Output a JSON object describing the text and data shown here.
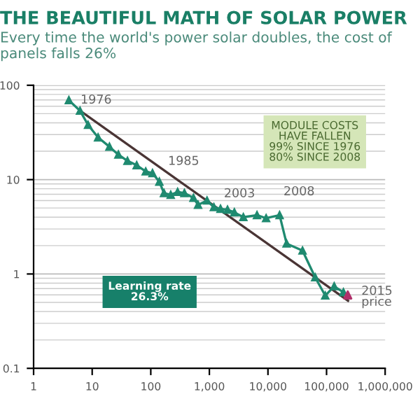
{
  "chart_data": {
    "type": "line",
    "title": "THE BEAUTIFUL MATH OF SOLAR POWER",
    "subtitle": "Every time the world's power solar doubles, the cost of panels falls 26%",
    "log": "xy",
    "grid": "y",
    "marker": "triangle",
    "line_style": "solid",
    "xlim": [
      1,
      1000000
    ],
    "ylim": [
      0.1,
      100
    ],
    "xticks": [
      1,
      10,
      100,
      {
        "value": 1000,
        "label": "1,000"
      },
      {
        "value": 10000,
        "label": "10,000"
      },
      {
        "value": 100000,
        "label": "100,000"
      },
      {
        "value": 1000000,
        "label": "1,000,000"
      }
    ],
    "yticks": [
      0.1,
      1,
      10,
      100
    ],
    "series": [
      {
        "color": "#1f8a70",
        "x": [
          4,
          6.2,
          8.5,
          12.6,
          19.7,
          28,
          40,
          57.5,
          82,
          107,
          140,
          168,
          219,
          287,
          375,
          535,
          641,
          912,
          1194,
          1550,
          2040,
          2670,
          3800,
          6500,
          9300,
          15800,
          20800,
          38900,
          64000,
          95000,
          135000,
          194000
        ],
        "values": [
          69.5,
          53.7,
          38,
          28,
          22.3,
          18.4,
          15.8,
          14.2,
          12.2,
          11.7,
          9.5,
          7.2,
          6.9,
          7.4,
          7.2,
          6.4,
          5.4,
          6.0,
          5.1,
          4.9,
          4.8,
          4.5,
          4.0,
          4.2,
          3.9,
          4.2,
          2.1,
          1.77,
          0.92,
          0.59,
          0.74,
          0.64
        ]
      },
      {
        "type": "line",
        "marker": "none",
        "color": "#4a3535",
        "x": [
          6.2,
          233000
        ],
        "values": [
          53.7,
          0.52
        ]
      },
      {
        "type": "scatter",
        "color": "#b0306a",
        "x": [
          230000
        ],
        "values": [
          0.6
        ]
      }
    ],
    "annotations": [
      {
        "text": "1976",
        "x": 4,
        "y": 69.5
      },
      {
        "text": "1985",
        "x": 107,
        "y": 11.7
      },
      {
        "text": "2003",
        "x": 3800,
        "y": 4.0
      },
      {
        "text": "2008",
        "x": 15800,
        "y": 4.2
      },
      {
        "text": "2015\nprice",
        "x": 230000,
        "y": 0.6
      },
      "MODULE COSTS\nHAVE FALLEN\n99% SINCE 1976\n80% SINCE 2008",
      "Learning rate\n26.3%"
    ]
  }
}
